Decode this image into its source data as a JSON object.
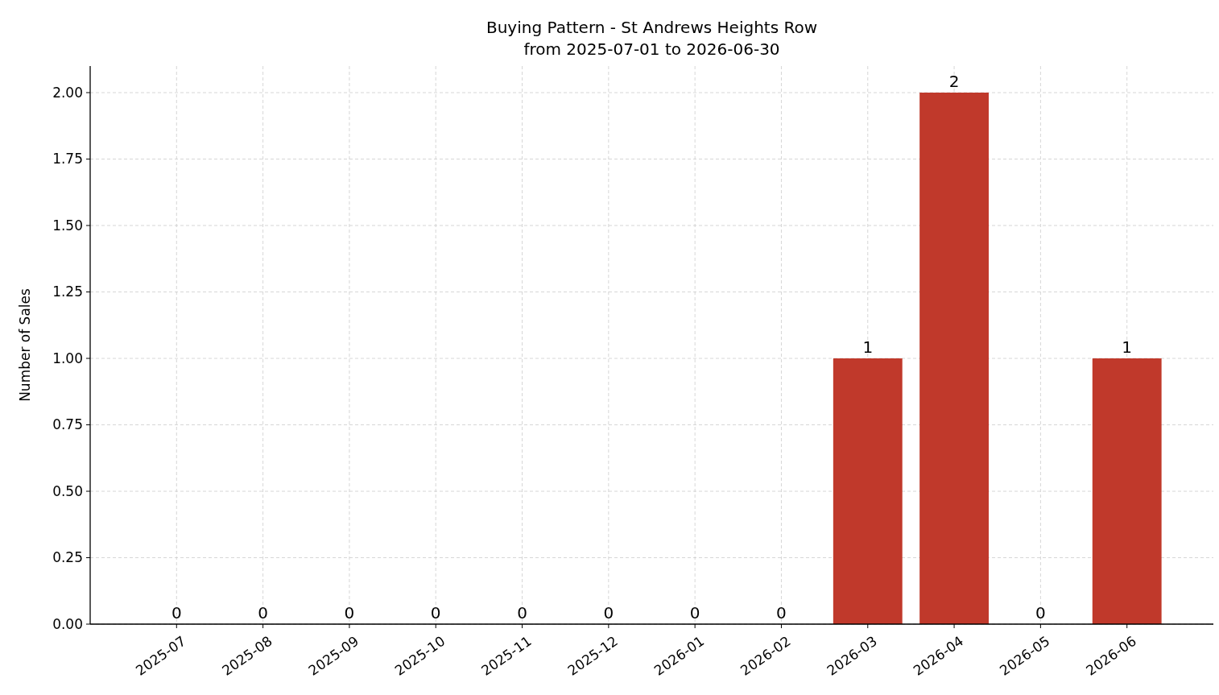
{
  "chart_data": {
    "type": "bar",
    "title": "Buying Pattern - St Andrews Heights Row\nfrom 2025-07-01 to 2026-06-30",
    "ylabel": "Number of Sales",
    "categories": [
      "2025-07",
      "2025-08",
      "2025-09",
      "2025-10",
      "2025-11",
      "2025-12",
      "2026-01",
      "2026-02",
      "2026-03",
      "2026-04",
      "2026-05",
      "2026-06"
    ],
    "values": [
      0,
      0,
      0,
      0,
      0,
      0,
      0,
      0,
      1,
      2,
      0,
      1
    ],
    "color": "#c0392b",
    "ylim": [
      0,
      2.1
    ],
    "yticks": [
      {
        "value": 0,
        "label": "0.00"
      },
      {
        "value": 0.25,
        "label": "0.25"
      },
      {
        "value": 0.5,
        "label": "0.50"
      },
      {
        "value": 0.75,
        "label": "0.75"
      },
      {
        "value": 1,
        "label": "1.00"
      },
      {
        "value": 1.25,
        "label": "1.25"
      },
      {
        "value": 1.5,
        "label": "1.50"
      },
      {
        "value": 1.75,
        "label": "1.75"
      },
      {
        "value": 2,
        "label": "2.00"
      }
    ],
    "grid": true,
    "data_labels": true
  }
}
